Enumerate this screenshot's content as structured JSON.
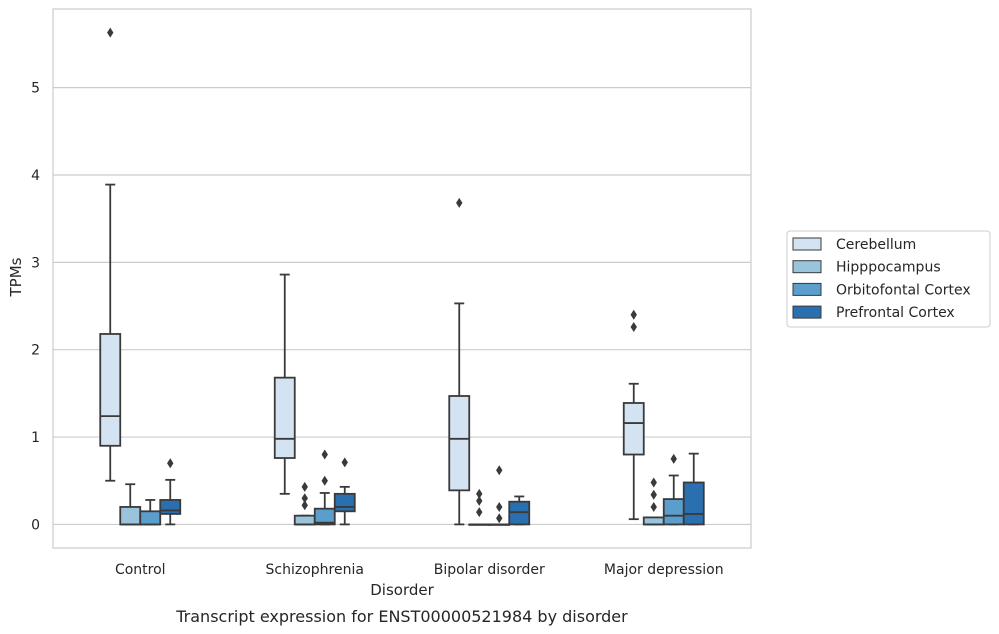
{
  "chart_data": {
    "type": "box",
    "caption": "Transcript expression for ENST00000521984 by disorder",
    "xlabel": "Disorder",
    "ylabel": "TPMs",
    "ylim": [
      -0.27,
      5.9
    ],
    "yticks": [
      0,
      1,
      2,
      3,
      4,
      5
    ],
    "grid": "horizontal",
    "legend_position": "right",
    "categories": [
      "Control",
      "Schizophrenia",
      "Bipolar disorder",
      "Major depression"
    ],
    "series": [
      {
        "name": "Cerebellum",
        "color": "#d3e3f2",
        "boxes": [
          {
            "whisker_low": 0.5,
            "q1": 0.9,
            "median": 1.24,
            "q3": 2.18,
            "whisker_high": 3.89,
            "outliers": [
              5.63
            ]
          },
          {
            "whisker_low": 0.35,
            "q1": 0.76,
            "median": 0.98,
            "q3": 1.68,
            "whisker_high": 2.86,
            "outliers": []
          },
          {
            "whisker_low": 0.0,
            "q1": 0.39,
            "median": 0.98,
            "q3": 1.47,
            "whisker_high": 2.53,
            "outliers": [
              3.68
            ]
          },
          {
            "whisker_low": 0.06,
            "q1": 0.8,
            "median": 1.16,
            "q3": 1.39,
            "whisker_high": 1.61,
            "outliers": [
              2.26,
              2.4
            ]
          }
        ]
      },
      {
        "name": "Hipppocampus",
        "color": "#9ac3dc",
        "boxes": [
          {
            "whisker_low": 0.0,
            "q1": 0.0,
            "median": 0.0,
            "q3": 0.2,
            "whisker_high": 0.46,
            "outliers": []
          },
          {
            "whisker_low": 0.0,
            "q1": 0.0,
            "median": 0.0,
            "q3": 0.1,
            "whisker_high": 0.1,
            "outliers": [
              0.22,
              0.3,
              0.43
            ]
          },
          {
            "whisker_low": 0.0,
            "q1": 0.0,
            "median": 0.0,
            "q3": 0.0,
            "whisker_high": 0.0,
            "outliers": [
              0.14,
              0.27,
              0.35
            ]
          },
          {
            "whisker_low": 0.0,
            "q1": 0.0,
            "median": 0.0,
            "q3": 0.08,
            "whisker_high": 0.08,
            "outliers": [
              0.2,
              0.34,
              0.48
            ]
          }
        ]
      },
      {
        "name": "Orbitofontal Cortex",
        "color": "#5b9ecb",
        "boxes": [
          {
            "whisker_low": 0.0,
            "q1": 0.0,
            "median": 0.0,
            "q3": 0.15,
            "whisker_high": 0.28,
            "outliers": []
          },
          {
            "whisker_low": 0.0,
            "q1": 0.0,
            "median": 0.02,
            "q3": 0.18,
            "whisker_high": 0.36,
            "outliers": [
              0.5,
              0.8
            ]
          },
          {
            "whisker_low": 0.0,
            "q1": 0.0,
            "median": 0.0,
            "q3": 0.0,
            "whisker_high": 0.0,
            "outliers": [
              0.07,
              0.2,
              0.62
            ]
          },
          {
            "whisker_low": 0.0,
            "q1": 0.0,
            "median": 0.1,
            "q3": 0.29,
            "whisker_high": 0.56,
            "outliers": [
              0.75
            ]
          }
        ]
      },
      {
        "name": "Prefrontal Cortex",
        "color": "#2a6faf",
        "boxes": [
          {
            "whisker_low": 0.0,
            "q1": 0.12,
            "median": 0.16,
            "q3": 0.28,
            "whisker_high": 0.51,
            "outliers": [
              0.7
            ]
          },
          {
            "whisker_low": 0.0,
            "q1": 0.15,
            "median": 0.2,
            "q3": 0.35,
            "whisker_high": 0.43,
            "outliers": [
              0.71
            ]
          },
          {
            "whisker_low": 0.0,
            "q1": 0.0,
            "median": 0.14,
            "q3": 0.26,
            "whisker_high": 0.32,
            "outliers": []
          },
          {
            "whisker_low": 0.0,
            "q1": 0.0,
            "median": 0.12,
            "q3": 0.48,
            "whisker_high": 0.81,
            "outliers": []
          }
        ]
      }
    ]
  }
}
